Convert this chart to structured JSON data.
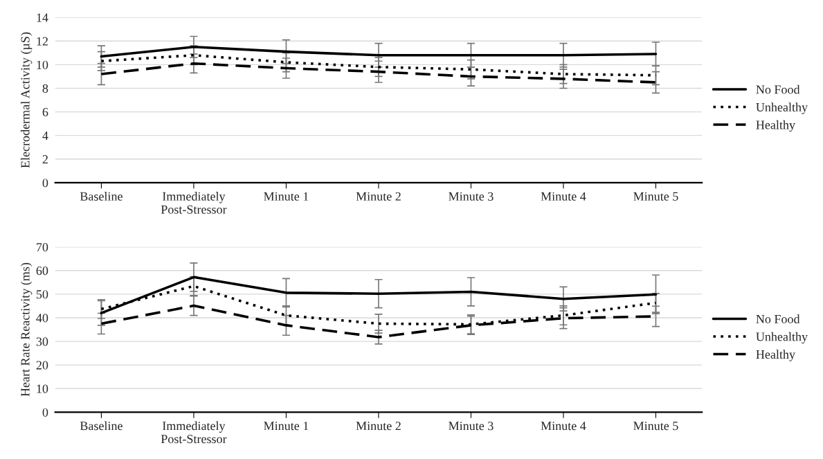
{
  "chart_data": [
    {
      "type": "line",
      "ylabel": "Elecrodermal Activity (µS)",
      "categories": [
        "Baseline",
        "Immediately\nPost-Stressor",
        "Minute 1",
        "Minute 2",
        "Minute 3",
        "Minute 4",
        "Minute 5"
      ],
      "ylim": [
        0,
        14
      ],
      "yticks": [
        0,
        2,
        4,
        6,
        8,
        10,
        12,
        14
      ],
      "grid": "y",
      "legend": "right",
      "marker": "none",
      "series": [
        {
          "name": "No Food",
          "color": "#000000",
          "line_style": "solid",
          "values": [
            10.7,
            11.5,
            11.1,
            10.8,
            10.8,
            10.8,
            10.9
          ],
          "errors": [
            0.9,
            0.9,
            1.0,
            1.0,
            1.0,
            1.0,
            1.0
          ]
        },
        {
          "name": "Unhealthy",
          "color": "#000000",
          "line_style": "dotted",
          "values": [
            10.3,
            10.8,
            10.2,
            9.8,
            9.6,
            9.2,
            9.1
          ],
          "errors": [
            0.8,
            0.8,
            0.8,
            0.8,
            0.8,
            0.8,
            0.8
          ]
        },
        {
          "name": "Healthy",
          "color": "#000000",
          "line_style": "dashed",
          "values": [
            9.2,
            10.1,
            9.7,
            9.4,
            9.0,
            8.8,
            8.5
          ],
          "errors": [
            0.9,
            0.8,
            0.85,
            0.9,
            0.8,
            0.8,
            0.9
          ]
        }
      ]
    },
    {
      "type": "line",
      "ylabel": "Heart Rate Reactivity (ms)",
      "categories": [
        "Baseline",
        "Immediately\nPost-Stressor",
        "Minute 1",
        "Minute 2",
        "Minute 3",
        "Minute 4",
        "Minute 5"
      ],
      "ylim": [
        0,
        70
      ],
      "yticks": [
        0,
        10,
        20,
        30,
        40,
        50,
        60,
        70
      ],
      "grid": "y",
      "legend": "right",
      "marker": "none",
      "series": [
        {
          "name": "No Food",
          "color": "#000000",
          "line_style": "solid",
          "values": [
            42.0,
            57.2,
            50.6,
            50.2,
            51.0,
            48.0,
            49.9
          ],
          "errors": [
            5.2,
            6.0,
            6.0,
            6.0,
            6.0,
            5.1,
            8.2
          ]
        },
        {
          "name": "Unhealthy",
          "color": "#000000",
          "line_style": "dotted",
          "values": [
            43.7,
            53.4,
            41.0,
            37.5,
            37.2,
            41.0,
            46.3
          ],
          "errors": [
            4,
            4,
            4,
            4,
            4,
            4,
            4
          ]
        },
        {
          "name": "Healthy",
          "color": "#000000",
          "line_style": "dashed",
          "values": [
            37.5,
            45.1,
            36.8,
            31.8,
            36.8,
            39.8,
            40.6
          ],
          "errors": [
            4.4,
            4.1,
            4.2,
            2.9,
            3.9,
            4.4,
            4.3
          ]
        }
      ]
    }
  ]
}
